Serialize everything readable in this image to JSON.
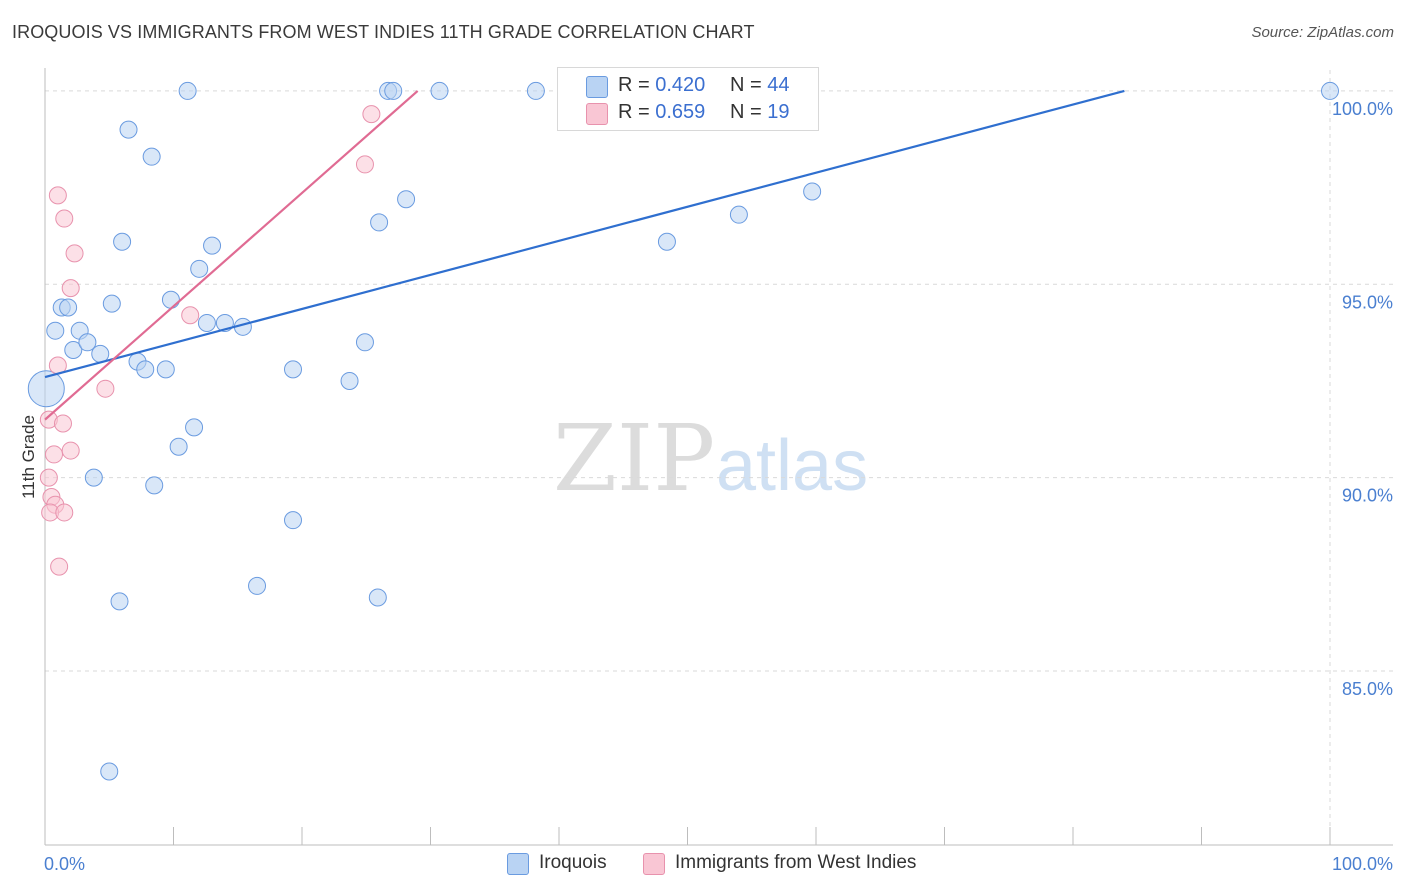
{
  "title": "IROQUOIS VS IMMIGRANTS FROM WEST INDIES 11TH GRADE CORRELATION CHART",
  "source": "Source: ZipAtlas.com",
  "watermark": {
    "zip": "ZIP",
    "atlas": "atlas"
  },
  "legend_top": {
    "rows": [
      {
        "r_label": "R = ",
        "r_value": "0.420",
        "n_label": "N = ",
        "n_value": "44"
      },
      {
        "r_label": "R = ",
        "r_value": "0.659",
        "n_label": "N = ",
        "n_value": "19"
      }
    ]
  },
  "legend_bottom": [
    "Iroquois",
    "Immigrants from West Indies"
  ],
  "colors": {
    "blue_fill": "#b9d3f3",
    "blue_stroke": "#6a9be0",
    "blue_line": "#2f6fcf",
    "pink_fill": "#f9c6d4",
    "pink_stroke": "#e892ad",
    "pink_line": "#e06b93",
    "grid": "#d9d9d9",
    "tick_text": "#4a7fd0"
  },
  "chart_data": {
    "type": "scatter",
    "title": "IROQUOIS VS IMMIGRANTS FROM WEST INDIES 11TH GRADE CORRELATION CHART",
    "xlabel": "",
    "ylabel": "11th Grade",
    "xlim": [
      0,
      100
    ],
    "ylim": [
      80.5,
      100.8
    ],
    "x_tick_labels": [
      "0.0%",
      "100.0%"
    ],
    "y_ticks": [
      85,
      90,
      95,
      100
    ],
    "y_tick_labels": [
      "85.0%",
      "90.0%",
      "95.0%",
      "100.0%"
    ],
    "series": [
      {
        "name": "Iroquois",
        "color": "blue",
        "r": 0.42,
        "n": 44,
        "trend": {
          "x": [
            0,
            84
          ],
          "y": [
            92.6,
            100.0
          ]
        },
        "points": [
          {
            "x": 0.1,
            "y": 92.3,
            "big": true
          },
          {
            "x": 0.8,
            "y": 93.8
          },
          {
            "x": 1.3,
            "y": 94.4
          },
          {
            "x": 1.8,
            "y": 94.4
          },
          {
            "x": 2.2,
            "y": 93.3
          },
          {
            "x": 2.7,
            "y": 93.8
          },
          {
            "x": 3.3,
            "y": 93.5
          },
          {
            "x": 4.3,
            "y": 93.2
          },
          {
            "x": 5.2,
            "y": 94.5
          },
          {
            "x": 6.0,
            "y": 96.1
          },
          {
            "x": 6.5,
            "y": 99.0
          },
          {
            "x": 7.2,
            "y": 93.0
          },
          {
            "x": 7.8,
            "y": 92.8
          },
          {
            "x": 8.3,
            "y": 98.3
          },
          {
            "x": 9.4,
            "y": 92.8
          },
          {
            "x": 9.8,
            "y": 94.6
          },
          {
            "x": 11.1,
            "y": 100.0
          },
          {
            "x": 12.0,
            "y": 95.4
          },
          {
            "x": 12.6,
            "y": 94.0
          },
          {
            "x": 13.0,
            "y": 96.0
          },
          {
            "x": 14.0,
            "y": 94.0
          },
          {
            "x": 15.4,
            "y": 93.9
          },
          {
            "x": 10.4,
            "y": 90.8
          },
          {
            "x": 11.6,
            "y": 91.3
          },
          {
            "x": 3.8,
            "y": 90.0
          },
          {
            "x": 8.5,
            "y": 89.8
          },
          {
            "x": 5.8,
            "y": 86.8
          },
          {
            "x": 16.5,
            "y": 87.2
          },
          {
            "x": 19.3,
            "y": 92.8
          },
          {
            "x": 19.3,
            "y": 88.9
          },
          {
            "x": 23.7,
            "y": 92.5
          },
          {
            "x": 24.9,
            "y": 93.5
          },
          {
            "x": 25.9,
            "y": 86.9
          },
          {
            "x": 26.0,
            "y": 96.6
          },
          {
            "x": 26.7,
            "y": 100.0
          },
          {
            "x": 27.1,
            "y": 100.0
          },
          {
            "x": 28.1,
            "y": 97.2
          },
          {
            "x": 30.7,
            "y": 100.0
          },
          {
            "x": 38.2,
            "y": 100.0
          },
          {
            "x": 48.4,
            "y": 96.1
          },
          {
            "x": 54.0,
            "y": 96.8
          },
          {
            "x": 59.7,
            "y": 97.4
          },
          {
            "x": 100.0,
            "y": 100.0
          },
          {
            "x": 5.0,
            "y": 82.4
          }
        ]
      },
      {
        "name": "Immigrants from West Indies",
        "color": "pink",
        "r": 0.659,
        "n": 19,
        "trend": {
          "x": [
            0,
            29
          ],
          "y": [
            91.5,
            100.0
          ]
        },
        "points": [
          {
            "x": 0.3,
            "y": 91.5
          },
          {
            "x": 1.0,
            "y": 92.9
          },
          {
            "x": 1.0,
            "y": 97.3
          },
          {
            "x": 1.5,
            "y": 96.7
          },
          {
            "x": 2.0,
            "y": 94.9
          },
          {
            "x": 2.3,
            "y": 95.8
          },
          {
            "x": 1.4,
            "y": 91.4
          },
          {
            "x": 0.7,
            "y": 90.6
          },
          {
            "x": 2.0,
            "y": 90.7
          },
          {
            "x": 0.3,
            "y": 90.0
          },
          {
            "x": 0.5,
            "y": 89.5
          },
          {
            "x": 0.8,
            "y": 89.3
          },
          {
            "x": 0.4,
            "y": 89.1
          },
          {
            "x": 1.5,
            "y": 89.1
          },
          {
            "x": 1.1,
            "y": 87.7
          },
          {
            "x": 4.7,
            "y": 92.3
          },
          {
            "x": 11.3,
            "y": 94.2
          },
          {
            "x": 24.9,
            "y": 98.1
          },
          {
            "x": 25.4,
            "y": 99.4
          }
        ]
      }
    ]
  }
}
